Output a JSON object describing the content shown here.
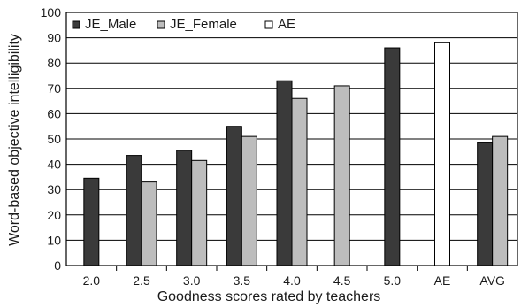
{
  "chart_data": {
    "type": "bar",
    "title": "",
    "xlabel": "Goodness scores rated by teachers",
    "ylabel": "Word-based objective intelligibility",
    "ylim": [
      0,
      100
    ],
    "yticks": [
      "0",
      "10",
      "20",
      "30",
      "40",
      "50",
      "60",
      "70",
      "80",
      "90",
      "100"
    ],
    "grid": true,
    "legend_position": "top-left",
    "categories": [
      "2.0",
      "2.5",
      "3.0",
      "3.5",
      "4.0",
      "4.5",
      "5.0",
      "AE",
      "AVG"
    ],
    "series": [
      {
        "name": "JE_Male",
        "color": "#3a3a3a",
        "values": [
          34.5,
          43.5,
          45.5,
          55.0,
          73.0,
          null,
          86.0,
          null,
          48.5
        ]
      },
      {
        "name": "JE_Female",
        "color": "#bdbdbd",
        "values": [
          null,
          33.0,
          41.5,
          51.0,
          66.0,
          71.0,
          null,
          null,
          51.0
        ]
      },
      {
        "name": "AE",
        "color": "#ffffff",
        "values": [
          null,
          null,
          null,
          null,
          null,
          null,
          null,
          88.0,
          null
        ]
      }
    ]
  }
}
